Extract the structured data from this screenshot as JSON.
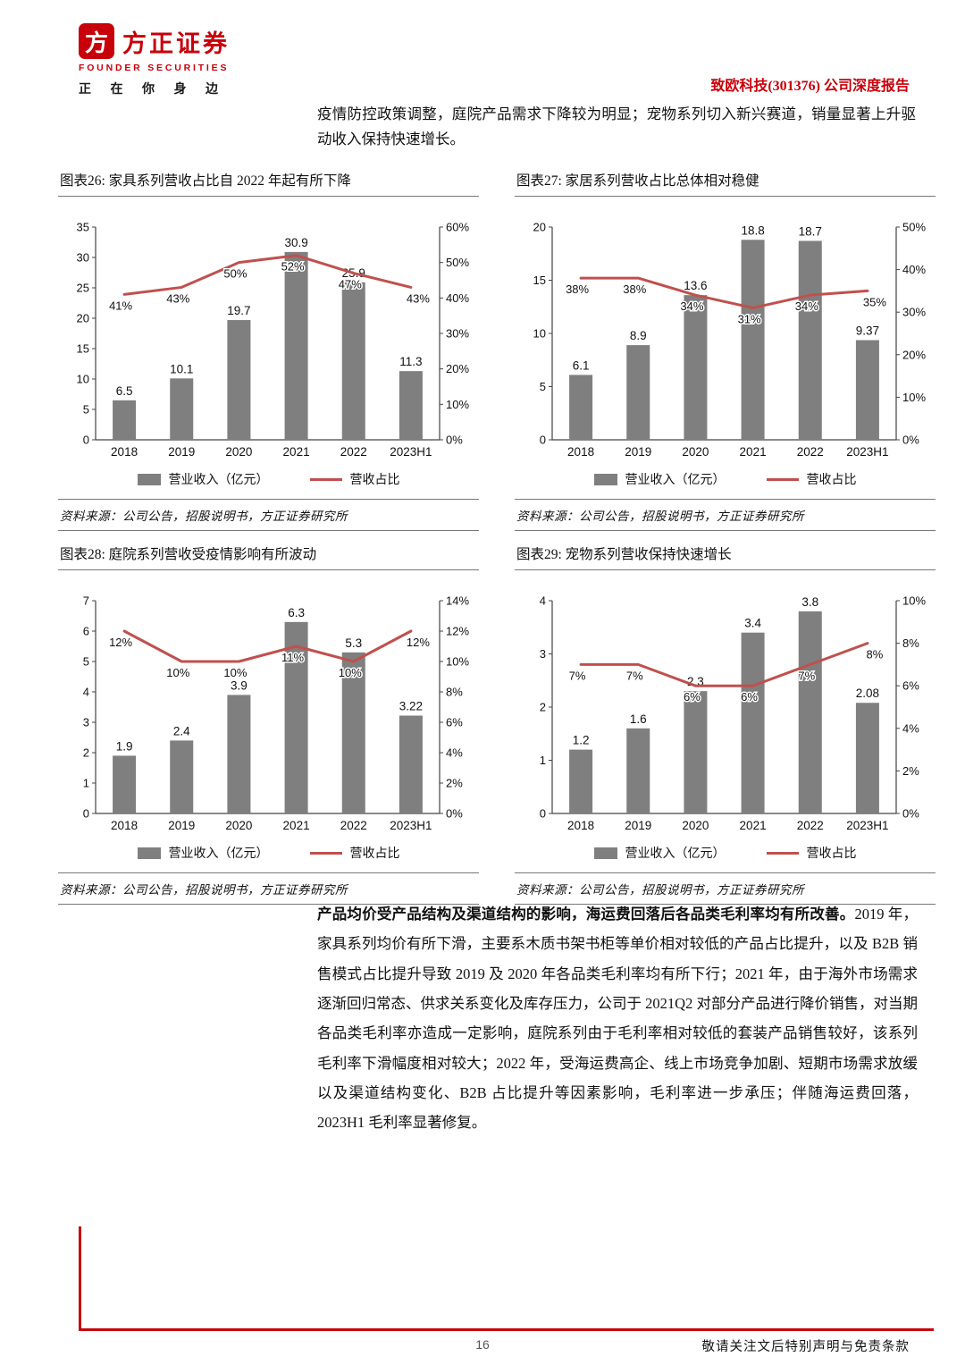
{
  "colors": {
    "accent": "#C7000A",
    "bar": "#7F7F7F",
    "line": "#C0504D"
  },
  "header": {
    "logo_glyph": "方",
    "brand_cn": "方正证券",
    "brand_en": "FOUNDER SECURITIES",
    "slogan": "正 在 你 身 边",
    "report_title": "致欧科技(301376) 公司深度报告"
  },
  "intro": "疫情防控政策调整，庭院产品需求下降较为明显；宠物系列切入新兴赛道，销量显著上升驱动收入保持快速增长。",
  "chart_data": [
    {
      "id": "figure-26",
      "type": "bar+line",
      "title": "图表26: 家具系列营收占比自 2022 年起有所下降",
      "categories": [
        "2018",
        "2019",
        "2020",
        "2021",
        "2022",
        "2023H1"
      ],
      "series": [
        {
          "name": "营业收入（亿元）",
          "type": "bar",
          "axis": "left",
          "values": [
            6.5,
            10.1,
            19.7,
            30.9,
            25.9,
            11.3
          ],
          "labels": [
            "6.5",
            "10.1",
            "19.7",
            "30.9",
            "25.9",
            "11.3"
          ]
        },
        {
          "name": "营收占比",
          "type": "line",
          "axis": "right",
          "values": [
            41,
            43,
            50,
            52,
            47,
            43
          ],
          "labels": [
            "41%",
            "43%",
            "50%",
            "52%",
            "47%",
            "43%"
          ]
        }
      ],
      "left_axis": {
        "min": 0,
        "max": 35,
        "step": 5
      },
      "right_axis": {
        "min": 0,
        "max": 60,
        "step": 10,
        "unit": "%"
      },
      "legend": [
        "营业收入（亿元）",
        "营收占比"
      ],
      "source": "资料来源：公司公告，招股说明书，方正证券研究所"
    },
    {
      "id": "figure-27",
      "type": "bar+line",
      "title": "图表27: 家居系列营收占比总体相对稳健",
      "categories": [
        "2018",
        "2019",
        "2020",
        "2021",
        "2022",
        "2023H1"
      ],
      "series": [
        {
          "name": "营业收入（亿元）",
          "type": "bar",
          "axis": "left",
          "values": [
            6.1,
            8.9,
            13.6,
            18.8,
            18.7,
            9.37
          ],
          "labels": [
            "6.1",
            "8.9",
            "13.6",
            "18.8",
            "18.7",
            "9.37"
          ]
        },
        {
          "name": "营收占比",
          "type": "line",
          "axis": "right",
          "values": [
            38,
            38,
            34,
            31,
            34,
            35
          ],
          "labels": [
            "38%",
            "38%",
            "34%",
            "31%",
            "34%",
            "35%"
          ]
        }
      ],
      "left_axis": {
        "min": 0,
        "max": 20,
        "step": 5
      },
      "right_axis": {
        "min": 0,
        "max": 50,
        "step": 10,
        "unit": "%"
      },
      "legend": [
        "营业收入（亿元）",
        "营收占比"
      ],
      "source": "资料来源：公司公告，招股说明书，方正证券研究所"
    },
    {
      "id": "figure-28",
      "type": "bar+line",
      "title": "图表28: 庭院系列营收受疫情影响有所波动",
      "categories": [
        "2018",
        "2019",
        "2020",
        "2021",
        "2022",
        "2023H1"
      ],
      "series": [
        {
          "name": "营业收入（亿元）",
          "type": "bar",
          "axis": "left",
          "values": [
            1.9,
            2.4,
            3.9,
            6.3,
            5.3,
            3.22
          ],
          "labels": [
            "1.9",
            "2.4",
            "3.9",
            "6.3",
            "5.3",
            "3.22"
          ]
        },
        {
          "name": "营收占比",
          "type": "line",
          "axis": "right",
          "values": [
            12,
            10,
            10,
            11,
            10,
            12
          ],
          "labels": [
            "12%",
            "10%",
            "10%",
            "11%",
            "10%",
            "12%"
          ]
        }
      ],
      "left_axis": {
        "min": 0,
        "max": 7,
        "step": 1
      },
      "right_axis": {
        "min": 0,
        "max": 14,
        "step": 2,
        "unit": "%"
      },
      "legend": [
        "营业收入（亿元）",
        "营收占比"
      ],
      "source": "资料来源：公司公告，招股说明书，方正证券研究所"
    },
    {
      "id": "figure-29",
      "type": "bar+line",
      "title": "图表29: 宠物系列营收保持快速增长",
      "categories": [
        "2018",
        "2019",
        "2020",
        "2021",
        "2022",
        "2023H1"
      ],
      "series": [
        {
          "name": "营业收入（亿元）",
          "type": "bar",
          "axis": "left",
          "values": [
            1.2,
            1.6,
            2.3,
            3.4,
            3.8,
            2.08
          ],
          "labels": [
            "1.2",
            "1.6",
            "2.3",
            "3.4",
            "3.8",
            "2.08"
          ]
        },
        {
          "name": "营收占比",
          "type": "line",
          "axis": "right",
          "values": [
            7,
            7,
            6,
            6,
            7,
            8
          ],
          "labels": [
            "7%",
            "7%",
            "6%",
            "6%",
            "7%",
            "8%"
          ]
        }
      ],
      "left_axis": {
        "min": 0,
        "max": 4,
        "step": 1
      },
      "right_axis": {
        "min": 0,
        "max": 10,
        "step": 2,
        "unit": "%"
      },
      "legend": [
        "营业收入（亿元）",
        "营收占比"
      ],
      "source": "资料来源：公司公告，招股说明书，方正证券研究所"
    }
  ],
  "analysis": {
    "lead": "产品均价受产品结构及渠道结构的影响，海运费回落后各品类毛利率均有所改善。",
    "body": "2019 年，家具系列均价有所下滑，主要系木质书架书柜等单价相对较低的产品占比提升，以及 B2B 销售模式占比提升导致 2019 及 2020 年各品类毛利率均有所下行；2021 年，由于海外市场需求逐渐回归常态、供求关系变化及库存压力，公司于 2021Q2 对部分产品进行降价销售，对当期各品类毛利率亦造成一定影响，庭院系列由于毛利率相对较低的套装产品销售较好，该系列毛利率下滑幅度相对较大；2022 年，受海运费高企、线上市场竞争加剧、短期市场需求放缓以及渠道结构变化、B2B 占比提升等因素影响，毛利率进一步承压；伴随海运费回落，2023H1 毛利率显著修复。"
  },
  "footer": {
    "page_number": "16",
    "disclaimer": "敬请关注文后特别声明与免责条款"
  }
}
